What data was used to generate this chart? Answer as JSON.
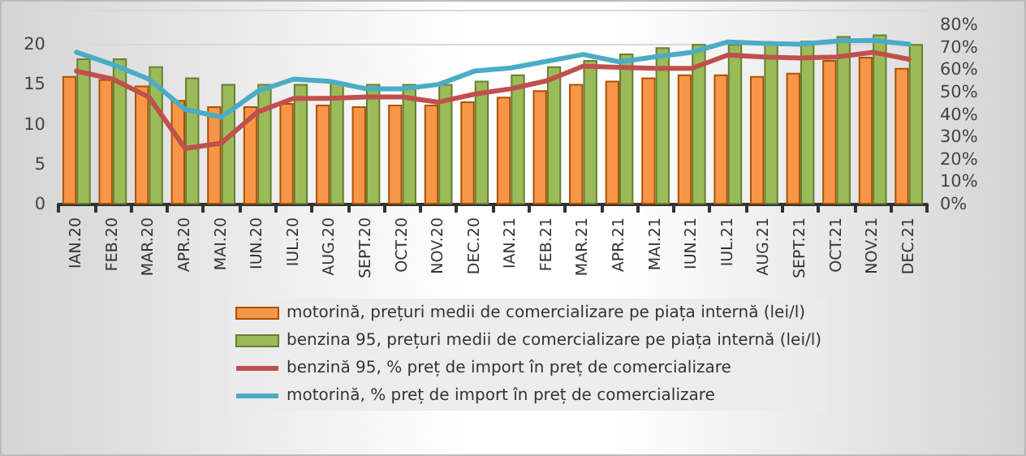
{
  "chart_data": {
    "type": "bar",
    "categories": [
      "IAN.20",
      "FEB.20",
      "MAR.20",
      "APR.20",
      "MAI.20",
      "IUN.20",
      "IUL.20",
      "AUG.20",
      "SEPT.20",
      "OCT.20",
      "NOV.20",
      "DEC.20",
      "IAN.21",
      "FEB.21",
      "MAR.21",
      "APR.21",
      "MAI.21",
      "IUN.21",
      "IUL.21",
      "AUG.21",
      "SEPT.21",
      "OCT.21",
      "NOV.21",
      "DEC.21"
    ],
    "series": [
      {
        "name": "motorină, prețuri medii de comercializare pe piața internă (lei/l)",
        "color": "#f79646",
        "values": [
          16.1,
          15.7,
          14.9,
          13.1,
          12.3,
          12.3,
          12.7,
          12.5,
          12.3,
          12.5,
          12.5,
          12.9,
          13.5,
          14.3,
          15.1,
          15.5,
          15.9,
          16.3,
          16.3,
          16.1,
          16.5,
          18.1,
          18.5,
          17.1
        ]
      },
      {
        "name": "benzina 95, prețuri medii de comercializare pe piața internă (lei/l)",
        "color": "#9bbb59",
        "values": [
          18.3,
          18.3,
          17.3,
          15.9,
          15.1,
          15.1,
          15.1,
          15.3,
          15.1,
          15.1,
          15.1,
          15.5,
          16.3,
          17.3,
          18.1,
          18.9,
          19.7,
          20.1,
          20.1,
          20.1,
          20.5,
          21.1,
          21.3,
          20.1
        ]
      },
      {
        "name": "benzină 95, % preț de import în preț de comercializare",
        "type": "line",
        "axis": "y2",
        "color": "#c0504d",
        "values": [
          59.6,
          56,
          48,
          25,
          27.4,
          41.3,
          47.4,
          47.4,
          48,
          48,
          45.7,
          49.3,
          51.7,
          55.3,
          61.8,
          61.3,
          60.8,
          60.8,
          66.8,
          65.9,
          65.4,
          65.9,
          68,
          64.9
        ]
      },
      {
        "name": "motorină, % preț de import în preț de comercializare",
        "type": "line",
        "axis": "y2",
        "color": "#4bacc6",
        "values": [
          68,
          62.5,
          56,
          42.5,
          39,
          50.5,
          56,
          55,
          51.7,
          51.7,
          53.6,
          59.6,
          61,
          64,
          67,
          63.7,
          66,
          68,
          72.6,
          72,
          71.6,
          73,
          73.3,
          71.6
        ]
      }
    ],
    "ylim": [
      0,
      24.4
    ],
    "yticks": [
      0,
      5,
      10,
      15,
      20
    ],
    "y2lim": [
      0,
      87
    ],
    "y2ticks": [
      {
        "value": 0,
        "label": "0%"
      },
      {
        "value": 10,
        "label": "10%"
      },
      {
        "value": 20,
        "label": "20%"
      },
      {
        "value": 30,
        "label": "30%"
      },
      {
        "value": 40,
        "label": "40%"
      },
      {
        "value": 50,
        "label": "50%"
      },
      {
        "value": 60,
        "label": "60%"
      },
      {
        "value": 70,
        "label": "70%"
      },
      {
        "value": 80,
        "label": "80%"
      }
    ],
    "grid": "y",
    "legend": "bottom",
    "marker": "none",
    "line_style": "solid"
  }
}
